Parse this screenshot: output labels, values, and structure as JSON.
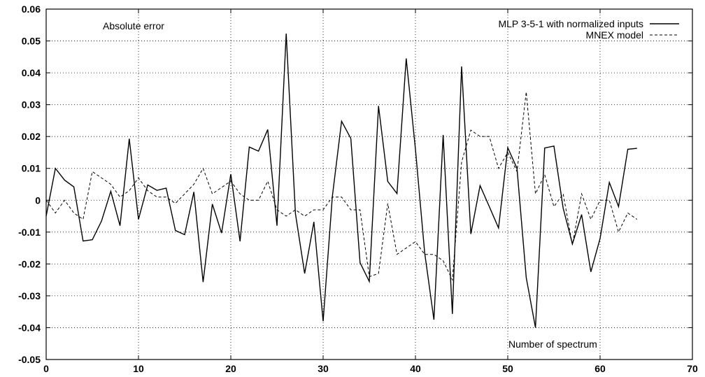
{
  "chart_data": {
    "type": "line",
    "title": "",
    "xlabel": "Number of spectrum",
    "ylabel": "",
    "annotation": "Absolute error",
    "xlim": [
      0,
      70
    ],
    "ylim": [
      -0.05,
      0.06
    ],
    "grid": true,
    "legend_position": "top-right",
    "x_ticks": [
      0,
      10,
      20,
      30,
      40,
      50,
      60,
      70
    ],
    "x_tick_labels": [
      "0",
      "10",
      "20",
      "30",
      "40",
      "50",
      "60",
      "70"
    ],
    "y_ticks": [
      -0.05,
      -0.04,
      -0.03,
      -0.02,
      -0.01,
      0,
      0.01,
      0.02,
      0.03,
      0.04,
      0.05,
      0.06
    ],
    "y_tick_labels": [
      "-0.05",
      "-0.04",
      "-0.03",
      "-0.02",
      "-0.01",
      "0",
      "0.01",
      "0.02",
      "0.03",
      "0.04",
      "0.05",
      "0.06"
    ],
    "x": [
      0,
      1,
      2,
      3,
      4,
      5,
      6,
      7,
      8,
      9,
      10,
      11,
      12,
      13,
      14,
      15,
      16,
      17,
      18,
      19,
      20,
      21,
      22,
      23,
      24,
      25,
      26,
      27,
      28,
      29,
      30,
      31,
      32,
      33,
      34,
      35,
      36,
      37,
      38,
      39,
      40,
      41,
      42,
      43,
      44,
      45,
      46,
      47,
      48,
      49,
      50,
      51,
      52,
      53,
      54,
      55,
      56,
      57,
      58,
      59,
      60,
      61,
      62,
      63,
      64
    ],
    "series": [
      {
        "name": "MLP 3-5-1 with normalized inputs",
        "style": "solid",
        "color": "#000000",
        "values": [
          -0.005,
          0.01,
          0.0063,
          0.0042,
          -0.0128,
          -0.0124,
          -0.0065,
          0.0028,
          -0.008,
          0.0193,
          -0.006,
          0.0048,
          0.0031,
          0.0038,
          -0.0095,
          -0.0108,
          0.0026,
          -0.0257,
          -0.0012,
          -0.0103,
          0.0082,
          -0.0129,
          0.0167,
          0.0154,
          0.0222,
          -0.008,
          0.0523,
          -0.0042,
          -0.023,
          -0.0068,
          -0.038,
          0.0012,
          0.0248,
          0.0194,
          -0.0196,
          -0.0255,
          0.0296,
          0.0059,
          0.0021,
          0.0445,
          0.016,
          -0.0165,
          -0.0375,
          0.0205,
          -0.0357,
          0.042,
          -0.0106,
          0.0046,
          -0.002,
          -0.0087,
          0.0165,
          0.01,
          -0.0243,
          -0.04,
          0.0164,
          0.017,
          -0.0025,
          -0.0137,
          -0.0045,
          -0.0225,
          -0.012,
          0.0056,
          -0.002,
          0.016,
          0.0163
        ]
      },
      {
        "name": "MNEX model",
        "style": "dashed",
        "color": "#000000",
        "values": [
          0.0,
          -0.004,
          0.0,
          -0.004,
          -0.006,
          0.009,
          0.007,
          0.005,
          0.001,
          0.003,
          0.007,
          0.003,
          0.001,
          0.001,
          -0.001,
          0.002,
          0.005,
          0.01,
          0.002,
          0.004,
          0.006,
          0.002,
          0.0,
          0.0,
          0.006,
          -0.003,
          -0.005,
          -0.003,
          -0.005,
          -0.003,
          -0.003,
          0.001,
          0.001,
          -0.003,
          -0.003,
          -0.024,
          -0.023,
          -0.001,
          -0.017,
          -0.015,
          -0.013,
          -0.017,
          -0.017,
          -0.019,
          -0.025,
          0.012,
          0.022,
          0.02,
          0.02,
          0.01,
          0.015,
          0.009,
          0.034,
          0.002,
          0.008,
          -0.002,
          0.002,
          -0.014,
          0.002,
          -0.006,
          0.0,
          0.0,
          -0.01,
          -0.004,
          -0.006
        ]
      }
    ]
  }
}
